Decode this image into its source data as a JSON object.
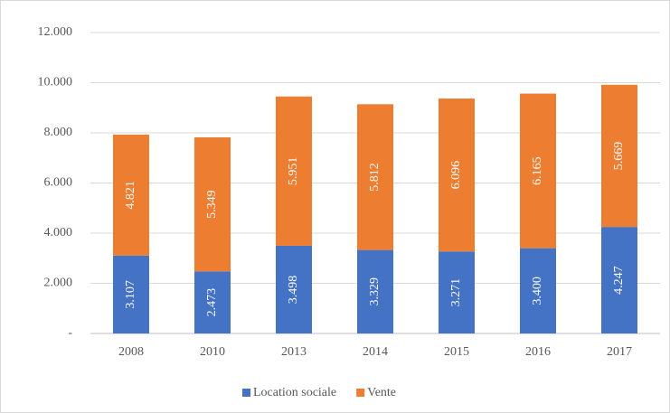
{
  "chart_data": {
    "type": "stacked_bar",
    "categories": [
      "2008",
      "2010",
      "2013",
      "2014",
      "2015",
      "2016",
      "2017"
    ],
    "series": [
      {
        "name": "Location sociale",
        "color": "#4472c4",
        "values": [
          3107,
          2473,
          3498,
          3329,
          3271,
          3400,
          4247
        ],
        "value_labels": [
          "3.107",
          "2.473",
          "3.498",
          "3.329",
          "3.271",
          "3.400",
          "4.247"
        ]
      },
      {
        "name": "Vente",
        "color": "#ed7d31",
        "values": [
          4821,
          5349,
          5951,
          5812,
          6096,
          6165,
          5669
        ],
        "value_labels": [
          "4.821",
          "5.349",
          "5.951",
          "5.812",
          "6.096",
          "6.165",
          "5.669"
        ]
      }
    ],
    "ylim": [
      0,
      12000
    ],
    "yticks": [
      {
        "value": 0,
        "label": "-"
      },
      {
        "value": 2000,
        "label": "2.000"
      },
      {
        "value": 4000,
        "label": "4.000"
      },
      {
        "value": 6000,
        "label": "6.000"
      },
      {
        "value": 8000,
        "label": "8.000"
      },
      {
        "value": 10000,
        "label": "10.000"
      },
      {
        "value": 12000,
        "label": "12.000"
      }
    ],
    "grid": true,
    "legend": "bottom"
  }
}
